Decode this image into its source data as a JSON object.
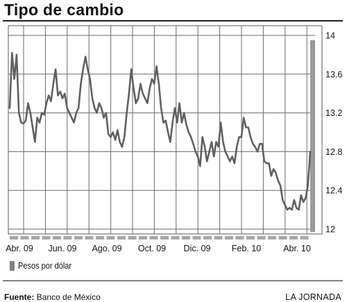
{
  "chart_data": {
    "type": "line",
    "title": "Tipo de cambio",
    "xlabel": "",
    "ylabel": "",
    "ylim": [
      11.95,
      14.1
    ],
    "y_ticks": [
      12,
      12.4,
      12.8,
      13.2,
      13.6,
      14
    ],
    "x_tick_labels": [
      "Abr. 09",
      "Jun. 09",
      "Ago. 09",
      "Oct. 09",
      "Dic. 09",
      "Feb. 10",
      "Abr. 10"
    ],
    "grid": true,
    "legend": {
      "position": "bottom-left"
    },
    "colors": {
      "line": "#606060",
      "grid": "#6a6a6a",
      "legend_swatch": "#808080",
      "right_bar": "#9a9a9a",
      "baseline_dashes": "#a8a8a8"
    },
    "series": [
      {
        "name": "Pesos por dólar",
        "values": [
          13.25,
          13.82,
          13.55,
          13.8,
          13.2,
          13.1,
          13.09,
          13.12,
          13.3,
          13.2,
          13.05,
          12.9,
          13.15,
          13.1,
          13.2,
          13.18,
          13.3,
          13.38,
          13.32,
          13.5,
          13.65,
          13.38,
          13.42,
          13.35,
          13.4,
          13.25,
          13.2,
          13.15,
          13.1,
          13.2,
          13.25,
          13.5,
          13.65,
          13.78,
          13.65,
          13.55,
          13.35,
          13.25,
          13.2,
          13.3,
          13.25,
          13.15,
          13.2,
          12.98,
          12.95,
          13.0,
          12.92,
          13.02,
          12.9,
          12.85,
          12.95,
          13.2,
          13.4,
          13.65,
          13.45,
          13.3,
          13.35,
          13.5,
          13.4,
          13.35,
          13.3,
          13.45,
          13.55,
          13.5,
          13.68,
          13.5,
          13.25,
          13.1,
          13.12,
          13.0,
          12.9,
          13.1,
          13.25,
          13.1,
          13.3,
          13.1,
          13.2,
          13.08,
          13.0,
          12.95,
          12.88,
          12.8,
          12.75,
          12.65,
          12.95,
          12.85,
          12.7,
          12.8,
          12.9,
          12.75,
          12.9,
          12.85,
          13.1,
          12.9,
          12.8,
          12.75,
          12.7,
          12.75,
          12.68,
          12.85,
          12.95,
          12.95,
          13.15,
          13.05,
          13.05,
          12.95,
          12.88,
          12.85,
          12.8,
          12.88,
          12.88,
          12.7,
          12.68,
          12.68,
          12.55,
          12.62,
          12.58,
          12.5,
          12.45,
          12.3,
          12.25,
          12.2,
          12.22,
          12.2,
          12.3,
          12.22,
          12.2,
          12.35,
          12.28,
          12.32,
          12.45,
          12.8
        ]
      }
    ]
  },
  "legend_label": "Pesos por dólar",
  "footer": {
    "source_label": "Fuente:",
    "source_value": "Banco de México",
    "brand": "LA JORNADA"
  }
}
